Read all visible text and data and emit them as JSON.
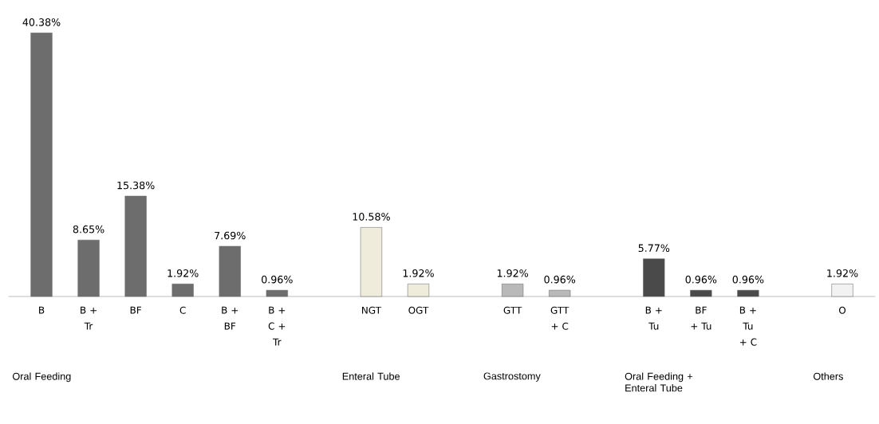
{
  "chart_data": {
    "type": "bar",
    "categories": [
      "B",
      "B + Tr",
      "BF",
      "C",
      "B + BF",
      "B + C + Tr",
      null,
      "NGT",
      "OGT",
      null,
      "GTT",
      "GTT + C",
      null,
      "B + Tu",
      "BF + Tu",
      "B + Tu + C",
      null,
      "O"
    ],
    "values": [
      40.38,
      8.65,
      15.38,
      1.92,
      7.69,
      0.96,
      null,
      10.58,
      1.92,
      null,
      1.92,
      0.96,
      null,
      5.77,
      0.96,
      0.96,
      null,
      1.92
    ],
    "value_labels": [
      "40.38%",
      "8.65%",
      "15.38%",
      "1.92%",
      "7.69%",
      "0.96%",
      null,
      "10.58%",
      "1.92%",
      null,
      "1.92%",
      "0.96%",
      null,
      "5.77%",
      "0.96%",
      "0.96%",
      null,
      "1.92%"
    ],
    "colors": [
      "#6d6d6d",
      "#6d6d6d",
      "#6d6d6d",
      "#6d6d6d",
      "#6d6d6d",
      "#6d6d6d",
      null,
      "#efecdc",
      "#efecdc",
      null,
      "#b9b9b9",
      "#b9b9b9",
      null,
      "#4a4a4a",
      "#4a4a4a",
      "#4a4a4a",
      null,
      "#f2f2f2"
    ],
    "annotations": [
      "Oral Feeding",
      "Enteral Tube",
      "Gastrostomy",
      "Oral Feeding + Enteral Tube",
      "Others"
    ]
  }
}
